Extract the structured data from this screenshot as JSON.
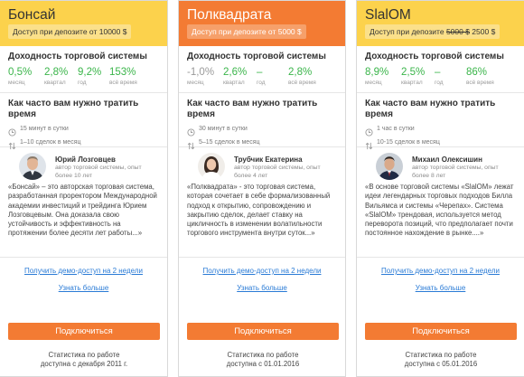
{
  "accent_color": "#f37b33",
  "highlight_color": "#fcd24c",
  "positive_color": "#3ab54a",
  "link_color": "#2a7bd6",
  "cards": [
    {
      "name": "Бонсай",
      "access_prefix": "Доступ при депозите от ",
      "access_old": "",
      "access_value": "10000 $",
      "profit_title": "Доходность торговой системы",
      "stats": [
        {
          "value": "0,5%",
          "label": "месяц"
        },
        {
          "value": "2,8%",
          "label": "квартал"
        },
        {
          "value": "9,2%",
          "label": "год"
        },
        {
          "value": "153%",
          "label": "всё время"
        }
      ],
      "time_title": "Как часто вам нужно тратить время",
      "time_per_day": "15 минут в сутки",
      "deals_per_month": "1–10 сделок в месяц",
      "author_name": "Юрий Лозговцев",
      "author_role": "автор торговой системы, опыт более 10 лет",
      "quote": "«Бонсай» – это авторская торговая система, разработанная проректором Международной академии инвестиций и трейдинга Юрием Лозговцевым. Она доказала свою устойчивость и эффективность на протяжении более десяти лет работы...»",
      "demo_link": "Получить демо-доступ на 2 недели",
      "more_link": "Узнать больше",
      "connect_button": "Подключиться",
      "footer_line1": "Статистика по работе",
      "footer_line2": "доступна с декабря 2011 г."
    },
    {
      "name": "Полквадрата",
      "access_prefix": "Доступ при депозите от ",
      "access_old": "",
      "access_value": "5000 $",
      "profit_title": "Доходность торговой системы",
      "stats": [
        {
          "value": "-1,0%",
          "label": "месяц"
        },
        {
          "value": "2,6%",
          "label": "квартал"
        },
        {
          "value": "–",
          "label": "год"
        },
        {
          "value": "2,8%",
          "label": "всё время"
        }
      ],
      "time_title": "Как часто вам нужно тратить время",
      "time_per_day": "30 минут в сутки",
      "deals_per_month": "5–15 сделок в месяц",
      "author_name": "Трубчик Екатерина",
      "author_role": "автор торговой системы, опыт более 4 лет",
      "quote": "«Полквадрата» - это торговая система, которая сочетает в себе формализованный подход к открытию, сопровождению и закрытию сделок, делает ставку на цикличность в изменении волатильности торгового инструмента внутри суток...»",
      "demo_link": "Получить демо-доступ на 2 недели",
      "more_link": "Узнать больше",
      "connect_button": "Подключиться",
      "footer_line1": "Статистика по работе",
      "footer_line2": "доступна с 01.01.2016"
    },
    {
      "name": "SlalOM",
      "access_prefix": "Доступ при депозите ",
      "access_old": "5000 $",
      "access_value": " 2500 $",
      "profit_title": "Доходность торговой системы",
      "stats": [
        {
          "value": "8,9%",
          "label": "месяц"
        },
        {
          "value": "2,5%",
          "label": "квартал"
        },
        {
          "value": "–",
          "label": "год"
        },
        {
          "value": "86%",
          "label": "всё время"
        }
      ],
      "time_title": "Как часто вам нужно тратить время",
      "time_per_day": "1 час в сутки",
      "deals_per_month": "10-15 сделок в месяц",
      "author_name": "Михаил Олексишин",
      "author_role": "автор торговой системы, опыт более 8 лет",
      "quote": "«В основе торговой системы «SlalOM» лежат идеи легендарных торговых подходов Билла Вильямса и системы «Черепах». Система «SlalOM» трендовая, используется метод переворота позиций, что предполагает почти постоянное нахождение в рынке....»",
      "demo_link": "Получить демо-доступ на 2 недели",
      "more_link": "Узнать больше",
      "connect_button": "Подключиться",
      "footer_line1": "Статистика по работе",
      "footer_line2": "доступна с 05.01.2016"
    }
  ]
}
